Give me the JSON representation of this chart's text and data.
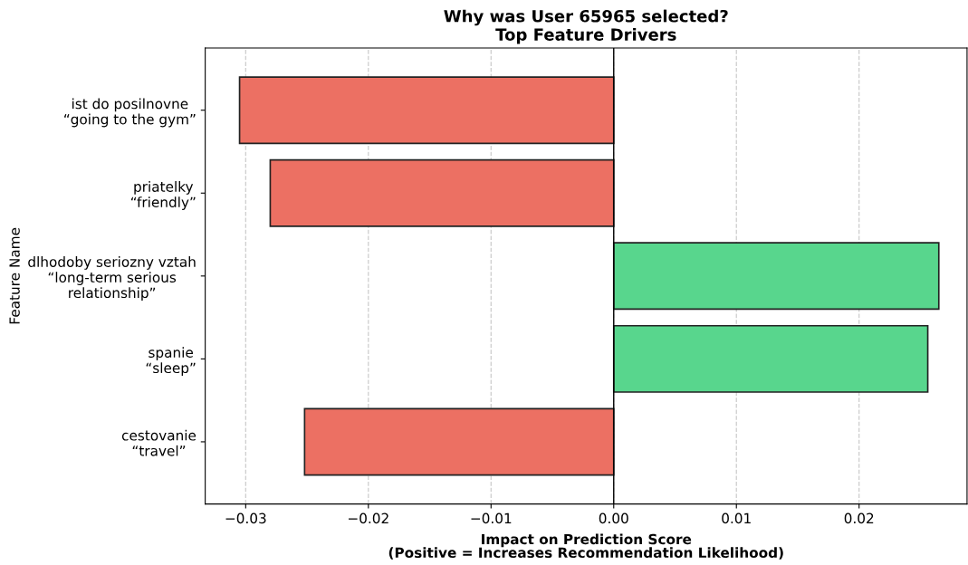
{
  "chart_data": {
    "type": "bar",
    "orientation": "horizontal",
    "title": "Why was User 65965 selected?\nTop Feature Drivers",
    "xlabel": "Impact on Prediction Score\n(Positive = Increases Recommendation Likelihood)",
    "ylabel": "Feature Name",
    "categories": [
      "ist do posilnovne\n“going to the gym”",
      "priatelky\n“friendly”",
      "dlhodoby seriozny vztah\n“long-term serious\nrelationship”",
      "spanie\n“sleep”",
      "cestovanie\n“travel”"
    ],
    "values": [
      -0.0305,
      -0.028,
      0.0265,
      0.0256,
      -0.0252
    ],
    "colors": [
      "#ec7063",
      "#ec7063",
      "#58d68d",
      "#58d68d",
      "#ec7063"
    ],
    "xlim": [
      -0.0333,
      0.0288
    ],
    "xticks": [
      {
        "value": -0.03,
        "label": "−0.03"
      },
      {
        "value": -0.02,
        "label": "−0.02"
      },
      {
        "value": -0.01,
        "label": "−0.01"
      },
      {
        "value": 0,
        "label": "0.00"
      },
      {
        "value": 0.01,
        "label": "0.01"
      },
      {
        "value": 0.02,
        "label": "0.02"
      }
    ],
    "grid": "x",
    "ref_lines": [
      {
        "axis": "x",
        "value": 0,
        "color": "#000000"
      }
    ]
  }
}
